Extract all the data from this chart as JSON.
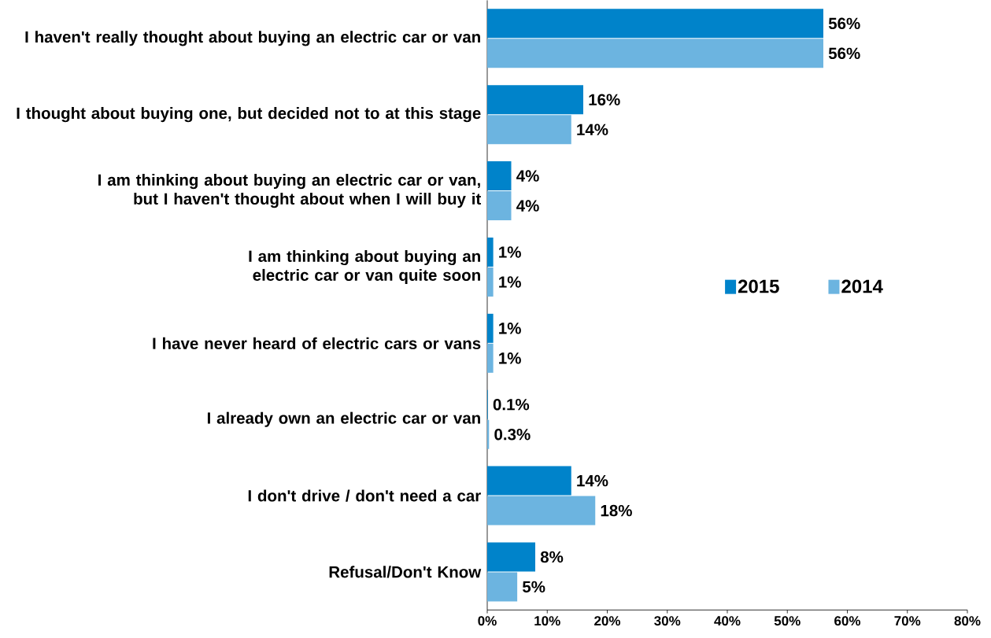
{
  "chart_data": {
    "type": "bar",
    "orientation": "horizontal",
    "categories": [
      "I haven't really thought about buying an electric car or van",
      "I thought about buying one, but decided not to at this stage",
      "I am thinking about buying an electric car or van, but I haven't thought about when I will buy it",
      "I am thinking about buying an electric car or van quite soon",
      "I have never heard of electric cars or vans",
      "I already own an electric car or van",
      "I don't drive / don't need a car",
      "Refusal/Don't Know"
    ],
    "series": [
      {
        "name": "2015",
        "color": "#0083ca",
        "values": [
          56,
          16,
          4,
          1,
          1,
          0.1,
          14,
          8
        ],
        "value_labels": [
          "56%",
          "16%",
          "4%",
          "1%",
          "1%",
          "0.1%",
          "14%",
          "8%"
        ]
      },
      {
        "name": "2014",
        "color": "#6cb4e0",
        "values": [
          56,
          14,
          4,
          1,
          1,
          0.3,
          18,
          5
        ],
        "value_labels": [
          "56%",
          "14%",
          "4%",
          "1%",
          "1%",
          "0.3%",
          "18%",
          "5%"
        ]
      }
    ],
    "xlim": [
      0,
      80
    ],
    "xticks": [
      {
        "value": 0,
        "label": "0%"
      },
      {
        "value": 10,
        "label": "10%"
      },
      {
        "value": 20,
        "label": "20%"
      },
      {
        "value": 30,
        "label": "30%"
      },
      {
        "value": 40,
        "label": "40%"
      },
      {
        "value": 50,
        "label": "50%"
      },
      {
        "value": 60,
        "label": "60%"
      },
      {
        "value": 70,
        "label": "70%"
      },
      {
        "value": 80,
        "label": "80%"
      }
    ],
    "legend": "right"
  }
}
